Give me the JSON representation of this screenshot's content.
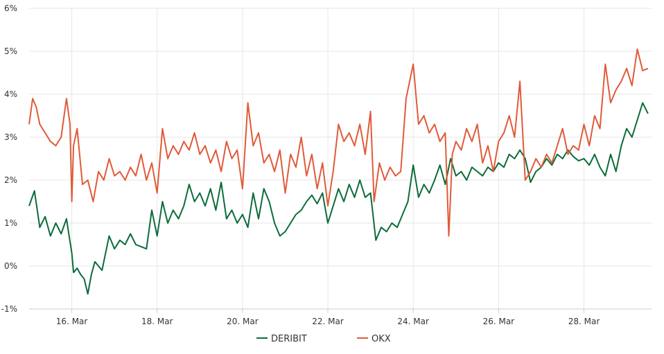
{
  "chart_data": {
    "type": "line",
    "title": "",
    "xlabel": "",
    "ylabel": "",
    "x_ticks": [
      {
        "day": 16,
        "label": "16. Mar"
      },
      {
        "day": 18,
        "label": "18. Mar"
      },
      {
        "day": 20,
        "label": "20. Mar"
      },
      {
        "day": 22,
        "label": "22. Mar"
      },
      {
        "day": 24,
        "label": "24. Mar"
      },
      {
        "day": 26,
        "label": "26. Mar"
      },
      {
        "day": 28,
        "label": "28. Mar"
      }
    ],
    "xlim": [
      "15 Mar",
      "29 Mar"
    ],
    "y_ticks": [
      {
        "value": -1,
        "label": "-1%"
      },
      {
        "value": 0,
        "label": "0%"
      },
      {
        "value": 1,
        "label": "1%"
      },
      {
        "value": 2,
        "label": "2%"
      },
      {
        "value": 3,
        "label": "3%"
      },
      {
        "value": 4,
        "label": "4%"
      },
      {
        "value": 5,
        "label": "5%"
      },
      {
        "value": 6,
        "label": "6%"
      }
    ],
    "ylim": [
      -1,
      6
    ],
    "grid": true,
    "legend_position": "bottom-center",
    "series": [
      {
        "name": "DERIBIT",
        "color": "#0b6b3a",
        "points": [
          [
            "15 Mar 00:00",
            1.4
          ],
          [
            "15 Mar 03:00",
            1.75
          ],
          [
            "15 Mar 06:00",
            0.9
          ],
          [
            "15 Mar 09:00",
            1.15
          ],
          [
            "15 Mar 12:00",
            0.7
          ],
          [
            "15 Mar 15:00",
            1.0
          ],
          [
            "15 Mar 18:00",
            0.75
          ],
          [
            "15 Mar 21:00",
            1.1
          ],
          [
            "16 Mar 00:00",
            0.3
          ],
          [
            "16 Mar 01:00",
            -0.15
          ],
          [
            "16 Mar 03:00",
            -0.05
          ],
          [
            "16 Mar 05:00",
            -0.2
          ],
          [
            "16 Mar 07:00",
            -0.3
          ],
          [
            "16 Mar 09:00",
            -0.65
          ],
          [
            "16 Mar 11:00",
            -0.2
          ],
          [
            "16 Mar 13:00",
            0.1
          ],
          [
            "16 Mar 15:00",
            0.0
          ],
          [
            "16 Mar 17:00",
            -0.1
          ],
          [
            "16 Mar 19:00",
            0.3
          ],
          [
            "16 Mar 21:00",
            0.7
          ],
          [
            "17 Mar 00:00",
            0.4
          ],
          [
            "17 Mar 03:00",
            0.6
          ],
          [
            "17 Mar 06:00",
            0.5
          ],
          [
            "17 Mar 09:00",
            0.75
          ],
          [
            "17 Mar 12:00",
            0.5
          ],
          [
            "17 Mar 15:00",
            0.45
          ],
          [
            "17 Mar 18:00",
            0.4
          ],
          [
            "17 Mar 21:00",
            1.3
          ],
          [
            "18 Mar 00:00",
            0.7
          ],
          [
            "18 Mar 03:00",
            1.5
          ],
          [
            "18 Mar 06:00",
            1.0
          ],
          [
            "18 Mar 09:00",
            1.3
          ],
          [
            "18 Mar 12:00",
            1.1
          ],
          [
            "18 Mar 15:00",
            1.4
          ],
          [
            "18 Mar 18:00",
            1.9
          ],
          [
            "18 Mar 21:00",
            1.5
          ],
          [
            "19 Mar 00:00",
            1.7
          ],
          [
            "19 Mar 03:00",
            1.4
          ],
          [
            "19 Mar 06:00",
            1.8
          ],
          [
            "19 Mar 09:00",
            1.3
          ],
          [
            "19 Mar 12:00",
            1.95
          ],
          [
            "19 Mar 15:00",
            1.1
          ],
          [
            "19 Mar 18:00",
            1.3
          ],
          [
            "19 Mar 21:00",
            1.0
          ],
          [
            "20 Mar 00:00",
            1.2
          ],
          [
            "20 Mar 03:00",
            0.9
          ],
          [
            "20 Mar 06:00",
            1.7
          ],
          [
            "20 Mar 09:00",
            1.1
          ],
          [
            "20 Mar 12:00",
            1.8
          ],
          [
            "20 Mar 15:00",
            1.5
          ],
          [
            "20 Mar 18:00",
            1.0
          ],
          [
            "20 Mar 21:00",
            0.7
          ],
          [
            "21 Mar 00:00",
            0.8
          ],
          [
            "21 Mar 03:00",
            1.0
          ],
          [
            "21 Mar 06:00",
            1.2
          ],
          [
            "21 Mar 09:00",
            1.3
          ],
          [
            "21 Mar 12:00",
            1.5
          ],
          [
            "21 Mar 15:00",
            1.65
          ],
          [
            "21 Mar 18:00",
            1.45
          ],
          [
            "21 Mar 21:00",
            1.7
          ],
          [
            "22 Mar 00:00",
            1.0
          ],
          [
            "22 Mar 03:00",
            1.4
          ],
          [
            "22 Mar 06:00",
            1.8
          ],
          [
            "22 Mar 09:00",
            1.5
          ],
          [
            "22 Mar 12:00",
            1.9
          ],
          [
            "22 Mar 15:00",
            1.6
          ],
          [
            "22 Mar 18:00",
            2.0
          ],
          [
            "22 Mar 21:00",
            1.6
          ],
          [
            "23 Mar 00:00",
            1.7
          ],
          [
            "23 Mar 03:00",
            0.6
          ],
          [
            "23 Mar 06:00",
            0.9
          ],
          [
            "23 Mar 09:00",
            0.8
          ],
          [
            "23 Mar 12:00",
            1.0
          ],
          [
            "23 Mar 15:00",
            0.9
          ],
          [
            "23 Mar 18:00",
            1.2
          ],
          [
            "23 Mar 21:00",
            1.5
          ],
          [
            "24 Mar 00:00",
            2.35
          ],
          [
            "24 Mar 03:00",
            1.6
          ],
          [
            "24 Mar 06:00",
            1.9
          ],
          [
            "24 Mar 09:00",
            1.7
          ],
          [
            "24 Mar 12:00",
            2.0
          ],
          [
            "24 Mar 15:00",
            2.35
          ],
          [
            "24 Mar 18:00",
            1.9
          ],
          [
            "24 Mar 21:00",
            2.5
          ],
          [
            "25 Mar 00:00",
            2.1
          ],
          [
            "25 Mar 03:00",
            2.2
          ],
          [
            "25 Mar 06:00",
            2.0
          ],
          [
            "25 Mar 09:00",
            2.3
          ],
          [
            "25 Mar 12:00",
            2.2
          ],
          [
            "25 Mar 15:00",
            2.1
          ],
          [
            "25 Mar 18:00",
            2.3
          ],
          [
            "25 Mar 21:00",
            2.2
          ],
          [
            "26 Mar 00:00",
            2.4
          ],
          [
            "26 Mar 03:00",
            2.3
          ],
          [
            "26 Mar 06:00",
            2.6
          ],
          [
            "26 Mar 09:00",
            2.5
          ],
          [
            "26 Mar 12:00",
            2.7
          ],
          [
            "26 Mar 15:00",
            2.5
          ],
          [
            "26 Mar 18:00",
            1.95
          ],
          [
            "26 Mar 21:00",
            2.2
          ],
          [
            "27 Mar 00:00",
            2.3
          ],
          [
            "27 Mar 03:00",
            2.5
          ],
          [
            "27 Mar 06:00",
            2.35
          ],
          [
            "27 Mar 09:00",
            2.6
          ],
          [
            "27 Mar 12:00",
            2.5
          ],
          [
            "27 Mar 15:00",
            2.7
          ],
          [
            "27 Mar 18:00",
            2.55
          ],
          [
            "27 Mar 21:00",
            2.45
          ],
          [
            "28 Mar 00:00",
            2.5
          ],
          [
            "28 Mar 03:00",
            2.35
          ],
          [
            "28 Mar 06:00",
            2.6
          ],
          [
            "28 Mar 09:00",
            2.3
          ],
          [
            "28 Mar 12:00",
            2.1
          ],
          [
            "28 Mar 15:00",
            2.6
          ],
          [
            "28 Mar 18:00",
            2.2
          ],
          [
            "28 Mar 21:00",
            2.8
          ],
          [
            "29 Mar 00:00",
            3.2
          ],
          [
            "29 Mar 03:00",
            3.0
          ],
          [
            "29 Mar 06:00",
            3.4
          ],
          [
            "29 Mar 09:00",
            3.8
          ],
          [
            "29 Mar 12:00",
            3.55
          ]
        ]
      },
      {
        "name": "OKX",
        "color": "#e05a38",
        "points": [
          [
            "15 Mar 00:00",
            3.3
          ],
          [
            "15 Mar 02:00",
            3.9
          ],
          [
            "15 Mar 04:00",
            3.7
          ],
          [
            "15 Mar 06:00",
            3.3
          ],
          [
            "15 Mar 09:00",
            3.1
          ],
          [
            "15 Mar 12:00",
            2.9
          ],
          [
            "15 Mar 15:00",
            2.8
          ],
          [
            "15 Mar 18:00",
            3.0
          ],
          [
            "15 Mar 21:00",
            3.9
          ],
          [
            "15 Mar 23:00",
            3.3
          ],
          [
            "16 Mar 00:00",
            1.5
          ],
          [
            "16 Mar 01:00",
            2.8
          ],
          [
            "16 Mar 03:00",
            3.2
          ],
          [
            "16 Mar 06:00",
            1.9
          ],
          [
            "16 Mar 09:00",
            2.0
          ],
          [
            "16 Mar 12:00",
            1.5
          ],
          [
            "16 Mar 15:00",
            2.2
          ],
          [
            "16 Mar 18:00",
            2.0
          ],
          [
            "16 Mar 21:00",
            2.5
          ],
          [
            "17 Mar 00:00",
            2.1
          ],
          [
            "17 Mar 03:00",
            2.2
          ],
          [
            "17 Mar 06:00",
            2.0
          ],
          [
            "17 Mar 09:00",
            2.3
          ],
          [
            "17 Mar 12:00",
            2.1
          ],
          [
            "17 Mar 15:00",
            2.6
          ],
          [
            "17 Mar 18:00",
            2.0
          ],
          [
            "17 Mar 21:00",
            2.4
          ],
          [
            "18 Mar 00:00",
            1.7
          ],
          [
            "18 Mar 03:00",
            3.2
          ],
          [
            "18 Mar 06:00",
            2.5
          ],
          [
            "18 Mar 09:00",
            2.8
          ],
          [
            "18 Mar 12:00",
            2.6
          ],
          [
            "18 Mar 15:00",
            2.9
          ],
          [
            "18 Mar 18:00",
            2.7
          ],
          [
            "18 Mar 21:00",
            3.1
          ],
          [
            "19 Mar 00:00",
            2.6
          ],
          [
            "19 Mar 03:00",
            2.8
          ],
          [
            "19 Mar 06:00",
            2.4
          ],
          [
            "19 Mar 09:00",
            2.7
          ],
          [
            "19 Mar 12:00",
            2.2
          ],
          [
            "19 Mar 15:00",
            2.9
          ],
          [
            "19 Mar 18:00",
            2.5
          ],
          [
            "19 Mar 21:00",
            2.7
          ],
          [
            "20 Mar 00:00",
            1.8
          ],
          [
            "20 Mar 03:00",
            3.8
          ],
          [
            "20 Mar 06:00",
            2.8
          ],
          [
            "20 Mar 09:00",
            3.1
          ],
          [
            "20 Mar 12:00",
            2.4
          ],
          [
            "20 Mar 15:00",
            2.6
          ],
          [
            "20 Mar 18:00",
            2.2
          ],
          [
            "20 Mar 21:00",
            2.7
          ],
          [
            "21 Mar 00:00",
            1.7
          ],
          [
            "21 Mar 03:00",
            2.6
          ],
          [
            "21 Mar 06:00",
            2.3
          ],
          [
            "21 Mar 09:00",
            3.0
          ],
          [
            "21 Mar 12:00",
            2.1
          ],
          [
            "21 Mar 15:00",
            2.6
          ],
          [
            "21 Mar 18:00",
            1.8
          ],
          [
            "21 Mar 21:00",
            2.4
          ],
          [
            "22 Mar 00:00",
            1.4
          ],
          [
            "22 Mar 03:00",
            2.2
          ],
          [
            "22 Mar 06:00",
            3.3
          ],
          [
            "22 Mar 09:00",
            2.9
          ],
          [
            "22 Mar 12:00",
            3.1
          ],
          [
            "22 Mar 15:00",
            2.8
          ],
          [
            "22 Mar 18:00",
            3.3
          ],
          [
            "22 Mar 21:00",
            2.6
          ],
          [
            "23 Mar 00:00",
            3.6
          ],
          [
            "23 Mar 02:00",
            1.5
          ],
          [
            "23 Mar 05:00",
            2.4
          ],
          [
            "23 Mar 08:00",
            2.0
          ],
          [
            "23 Mar 11:00",
            2.3
          ],
          [
            "23 Mar 14:00",
            2.1
          ],
          [
            "23 Mar 17:00",
            2.2
          ],
          [
            "23 Mar 20:00",
            3.9
          ],
          [
            "24 Mar 00:00",
            4.7
          ],
          [
            "24 Mar 03:00",
            3.3
          ],
          [
            "24 Mar 06:00",
            3.5
          ],
          [
            "24 Mar 09:00",
            3.1
          ],
          [
            "24 Mar 12:00",
            3.3
          ],
          [
            "24 Mar 15:00",
            2.9
          ],
          [
            "24 Mar 18:00",
            3.1
          ],
          [
            "24 Mar 20:00",
            0.7
          ],
          [
            "24 Mar 22:00",
            2.6
          ],
          [
            "25 Mar 00:00",
            2.9
          ],
          [
            "25 Mar 03:00",
            2.7
          ],
          [
            "25 Mar 06:00",
            3.2
          ],
          [
            "25 Mar 09:00",
            2.9
          ],
          [
            "25 Mar 12:00",
            3.3
          ],
          [
            "25 Mar 15:00",
            2.4
          ],
          [
            "25 Mar 18:00",
            2.8
          ],
          [
            "25 Mar 21:00",
            2.2
          ],
          [
            "26 Mar 00:00",
            2.9
          ],
          [
            "26 Mar 03:00",
            3.1
          ],
          [
            "26 Mar 06:00",
            3.5
          ],
          [
            "26 Mar 09:00",
            3.0
          ],
          [
            "26 Mar 12:00",
            4.3
          ],
          [
            "26 Mar 15:00",
            2.0
          ],
          [
            "26 Mar 18:00",
            2.2
          ],
          [
            "26 Mar 21:00",
            2.5
          ],
          [
            "27 Mar 00:00",
            2.3
          ],
          [
            "27 Mar 03:00",
            2.6
          ],
          [
            "27 Mar 06:00",
            2.4
          ],
          [
            "27 Mar 09:00",
            2.8
          ],
          [
            "27 Mar 12:00",
            3.2
          ],
          [
            "27 Mar 15:00",
            2.6
          ],
          [
            "27 Mar 18:00",
            2.8
          ],
          [
            "27 Mar 21:00",
            2.7
          ],
          [
            "28 Mar 00:00",
            3.3
          ],
          [
            "28 Mar 03:00",
            2.8
          ],
          [
            "28 Mar 06:00",
            3.5
          ],
          [
            "28 Mar 09:00",
            3.2
          ],
          [
            "28 Mar 12:00",
            4.7
          ],
          [
            "28 Mar 15:00",
            3.8
          ],
          [
            "28 Mar 18:00",
            4.1
          ],
          [
            "28 Mar 21:00",
            4.3
          ],
          [
            "29 Mar 00:00",
            4.6
          ],
          [
            "29 Mar 03:00",
            4.2
          ],
          [
            "29 Mar 06:00",
            5.05
          ],
          [
            "29 Mar 09:00",
            4.55
          ],
          [
            "29 Mar 12:00",
            4.6
          ]
        ]
      }
    ]
  }
}
